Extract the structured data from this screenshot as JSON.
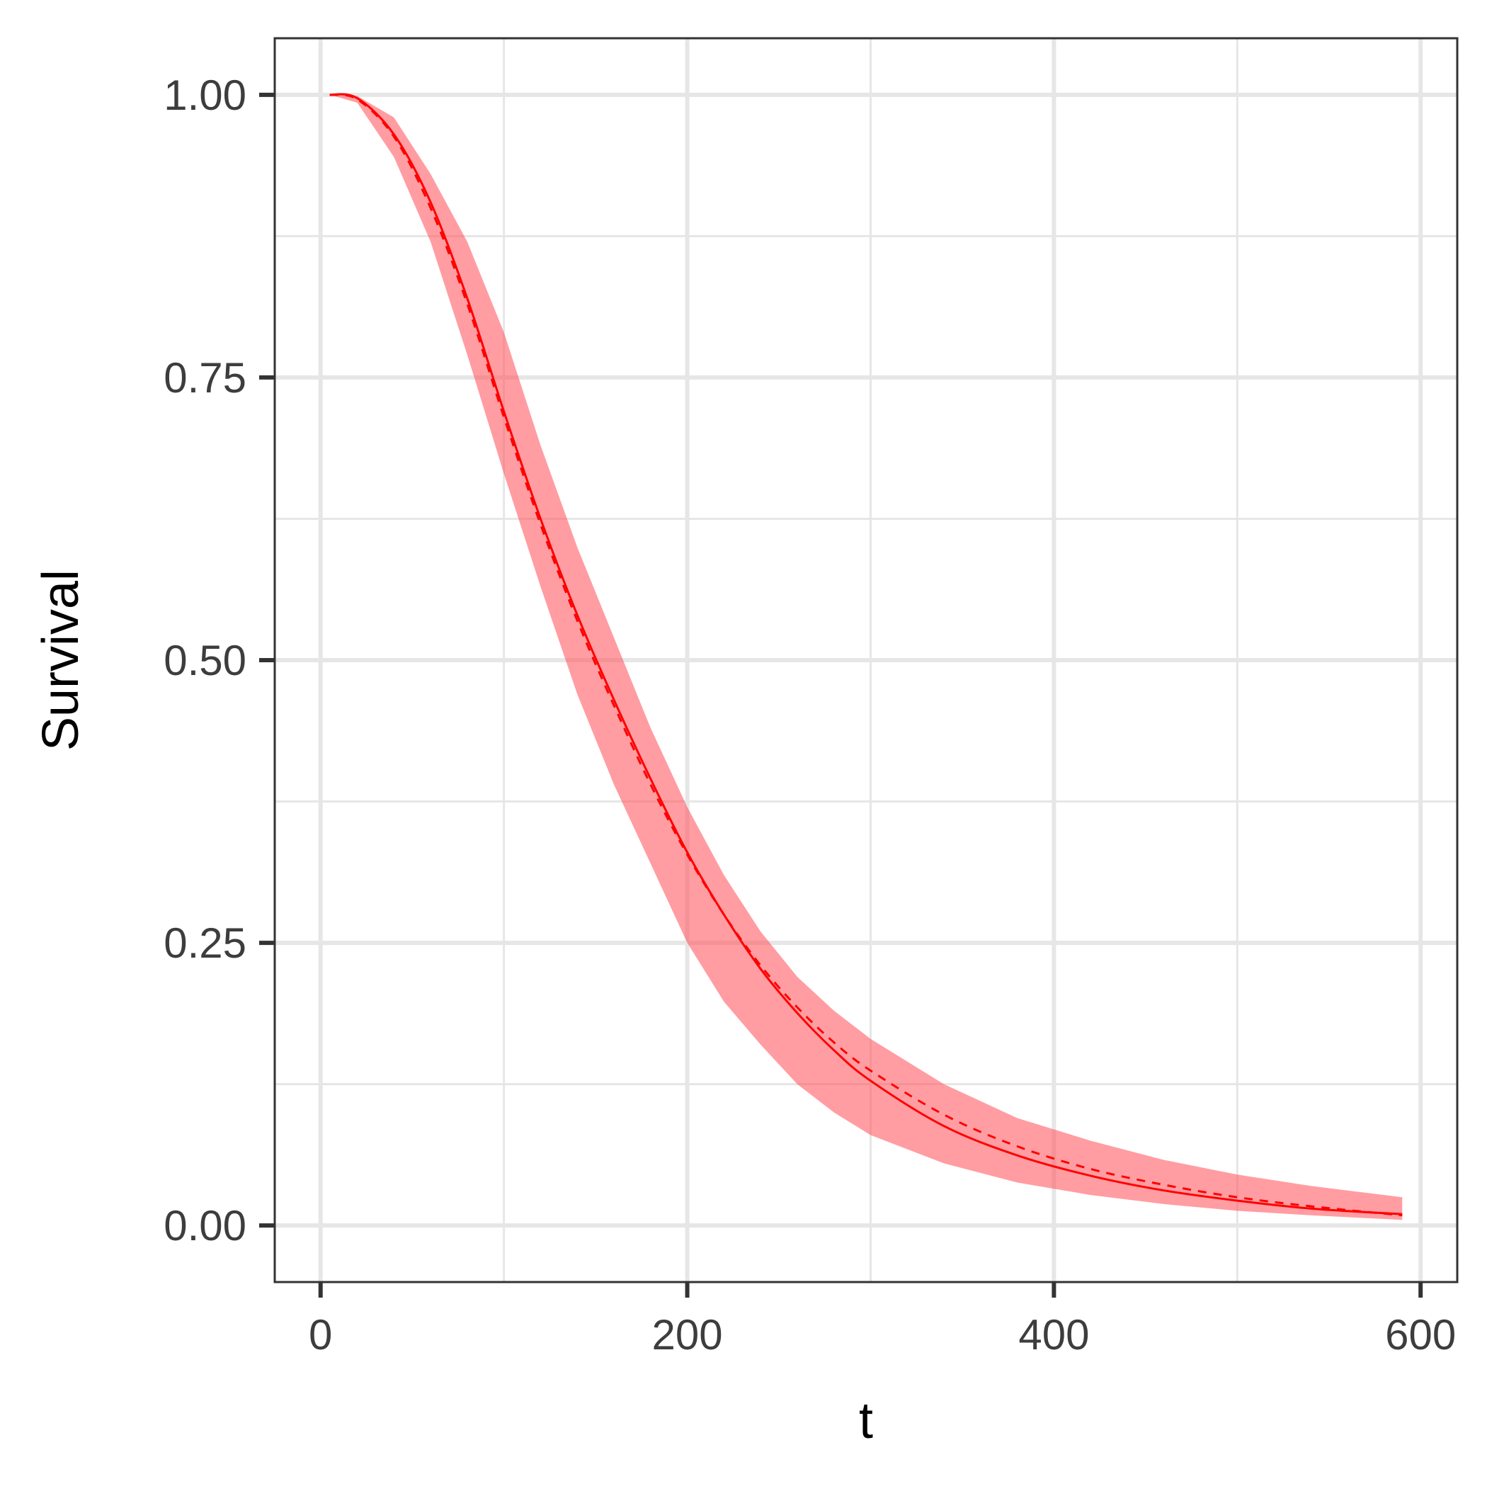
{
  "chart_data": {
    "type": "line",
    "title": "",
    "xlabel": "t",
    "ylabel": "Survival",
    "xlim": [
      -25,
      620
    ],
    "ylim": [
      -0.05,
      1.05
    ],
    "x_ticks": [
      0,
      200,
      400,
      600
    ],
    "x_tick_labels": [
      "0",
      "200",
      "400",
      "600"
    ],
    "y_ticks": [
      0,
      0.25,
      0.5,
      0.75,
      1.0
    ],
    "y_tick_labels": [
      "0.00",
      "0.25",
      "0.50",
      "0.75",
      "1.00"
    ],
    "x_minor_ticks": [
      100,
      300,
      500
    ],
    "y_minor_ticks": [
      0.125,
      0.375,
      0.625,
      0.875
    ],
    "grid": true,
    "legend": "none",
    "colors": {
      "line": "#ff0000",
      "band": "#ff4d55",
      "grid": "#e6e6e6",
      "panel_border": "#333333"
    },
    "series": [
      {
        "style": "solid",
        "x": [
          5,
          20,
          40,
          60,
          80,
          100,
          120,
          140,
          160,
          180,
          200,
          220,
          240,
          260,
          280,
          300,
          340,
          380,
          420,
          460,
          500,
          540,
          590
        ],
        "y": [
          1.0,
          0.997,
          0.965,
          0.905,
          0.82,
          0.72,
          0.625,
          0.54,
          0.465,
          0.395,
          0.33,
          0.275,
          0.227,
          0.188,
          0.155,
          0.128,
          0.088,
          0.062,
          0.044,
          0.031,
          0.022,
          0.015,
          0.01
        ]
      },
      {
        "style": "dashed",
        "x": [
          5,
          20,
          40,
          60,
          80,
          100,
          120,
          140,
          160,
          180,
          200,
          220,
          240,
          260,
          280,
          300,
          340,
          380,
          420,
          460,
          500,
          540,
          590
        ],
        "y": [
          1.0,
          0.996,
          0.963,
          0.9,
          0.815,
          0.715,
          0.62,
          0.535,
          0.46,
          0.39,
          0.328,
          0.275,
          0.23,
          0.193,
          0.162,
          0.137,
          0.098,
          0.07,
          0.05,
          0.036,
          0.025,
          0.017,
          0.009
        ]
      }
    ],
    "band": {
      "x": [
        5,
        20,
        40,
        60,
        80,
        100,
        120,
        140,
        160,
        180,
        200,
        220,
        240,
        260,
        280,
        300,
        340,
        380,
        420,
        460,
        500,
        540,
        590
      ],
      "lower": [
        1.0,
        0.993,
        0.945,
        0.87,
        0.77,
        0.665,
        0.565,
        0.47,
        0.39,
        0.32,
        0.25,
        0.198,
        0.16,
        0.125,
        0.1,
        0.08,
        0.055,
        0.038,
        0.027,
        0.019,
        0.013,
        0.009,
        0.005
      ],
      "upper": [
        1.0,
        0.999,
        0.98,
        0.93,
        0.87,
        0.79,
        0.69,
        0.6,
        0.52,
        0.44,
        0.37,
        0.31,
        0.26,
        0.22,
        0.19,
        0.165,
        0.125,
        0.095,
        0.075,
        0.058,
        0.045,
        0.035,
        0.025
      ]
    }
  }
}
